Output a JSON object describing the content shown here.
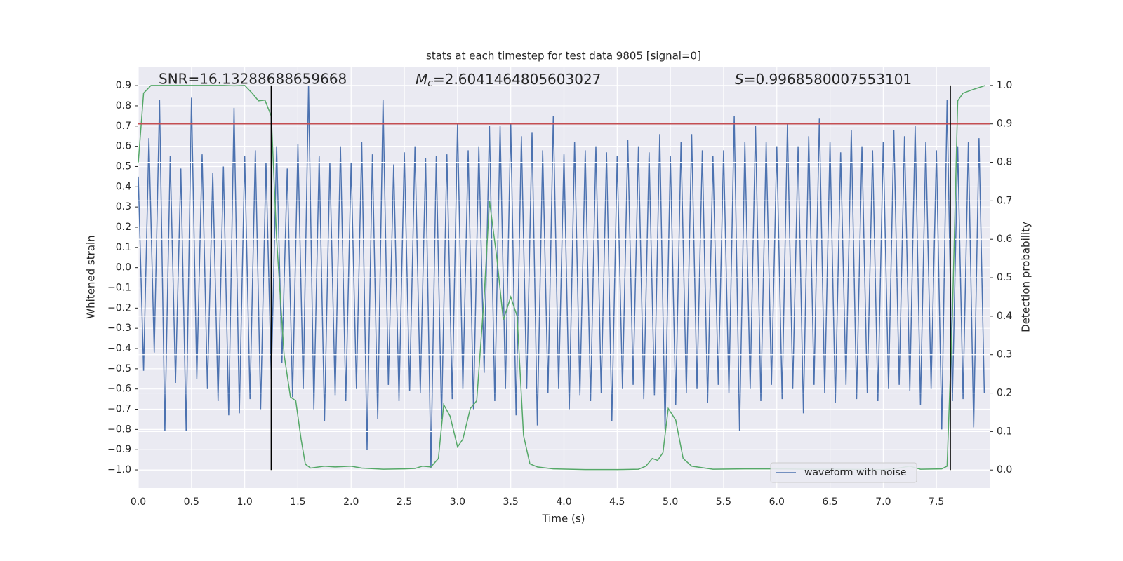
{
  "chart_data": {
    "type": "line",
    "title": "stats at each timestep for test data 9805 [signal=0]",
    "xlabel": "Time (s)",
    "ylabel": "Whitened strain",
    "y2label": "Detection probability",
    "annotations": [
      {
        "text": "SNR=16.13288688659668"
      },
      {
        "symbol": "M",
        "subscript": "c",
        "text": "=2.6041464805603027"
      },
      {
        "symbol": "S",
        "text": "=0.9968580007553101"
      }
    ],
    "xlim": [
      0,
      8.0
    ],
    "ylim": [
      -1.09,
      0.994
    ],
    "y2lim": [
      -0.047,
      1.049
    ],
    "xticks": [
      {
        "value": 0,
        "label": "0.0"
      },
      {
        "value": 0.5,
        "label": "0.5"
      },
      {
        "value": 1,
        "label": "1.0"
      },
      {
        "value": 1.5,
        "label": "1.5"
      },
      {
        "value": 2,
        "label": "2.0"
      },
      {
        "value": 2.5,
        "label": "2.5"
      },
      {
        "value": 3,
        "label": "3.0"
      },
      {
        "value": 3.5,
        "label": "3.5"
      },
      {
        "value": 4,
        "label": "4.0"
      },
      {
        "value": 4.5,
        "label": "4.5"
      },
      {
        "value": 5,
        "label": "5.0"
      },
      {
        "value": 5.5,
        "label": "5.5"
      },
      {
        "value": 6,
        "label": "6.0"
      },
      {
        "value": 6.5,
        "label": "6.5"
      },
      {
        "value": 7,
        "label": "7.0"
      },
      {
        "value": 7.5,
        "label": "7.5"
      }
    ],
    "yticks": [
      {
        "value": -1.0,
        "label": "−1.0"
      },
      {
        "value": -0.9,
        "label": "−0.9"
      },
      {
        "value": -0.8,
        "label": "−0.8"
      },
      {
        "value": -0.7,
        "label": "−0.7"
      },
      {
        "value": -0.6,
        "label": "−0.6"
      },
      {
        "value": -0.5,
        "label": "−0.5"
      },
      {
        "value": -0.4,
        "label": "−0.4"
      },
      {
        "value": -0.3,
        "label": "−0.3"
      },
      {
        "value": -0.2,
        "label": "−0.2"
      },
      {
        "value": -0.1,
        "label": "−0.1"
      },
      {
        "value": 0,
        "label": "0.0"
      },
      {
        "value": 0.1,
        "label": "0.1"
      },
      {
        "value": 0.2,
        "label": "0.2"
      },
      {
        "value": 0.3,
        "label": "0.3"
      },
      {
        "value": 0.4,
        "label": "0.4"
      },
      {
        "value": 0.5,
        "label": "0.5"
      },
      {
        "value": 0.6,
        "label": "0.6"
      },
      {
        "value": 0.7,
        "label": "0.7"
      },
      {
        "value": 0.8,
        "label": "0.8"
      },
      {
        "value": 0.9,
        "label": "0.9"
      }
    ],
    "y2ticks": [
      {
        "value": 0,
        "label": "0.0"
      },
      {
        "value": 0.1,
        "label": "0.1"
      },
      {
        "value": 0.2,
        "label": "0.2"
      },
      {
        "value": 0.3,
        "label": "0.3"
      },
      {
        "value": 0.4,
        "label": "0.4"
      },
      {
        "value": 0.5,
        "label": "0.5"
      },
      {
        "value": 0.6,
        "label": "0.6"
      },
      {
        "value": 0.7,
        "label": "0.7"
      },
      {
        "value": 0.8,
        "label": "0.8"
      },
      {
        "value": 0.9,
        "label": "0.9"
      },
      {
        "value": 1,
        "label": "1.0"
      }
    ],
    "grid": true,
    "legend": "lower right",
    "series": [
      {
        "name": "waveform with noise",
        "color": "#4c72b0",
        "x": [
          0,
          0.05,
          0.1,
          0.15,
          0.2,
          0.25,
          0.3,
          0.35,
          0.4,
          0.45,
          0.5,
          0.55,
          0.6,
          0.65,
          0.7,
          0.75,
          0.8,
          0.85,
          0.9,
          0.95,
          1,
          1.05,
          1.1,
          1.15,
          1.2,
          1.25,
          1.3,
          1.35,
          1.4,
          1.45,
          1.5,
          1.55,
          1.6,
          1.65,
          1.7,
          1.75,
          1.8,
          1.85,
          1.9,
          1.95,
          2,
          2.05,
          2.1,
          2.15,
          2.2,
          2.25,
          2.3,
          2.35,
          2.4,
          2.45,
          2.5,
          2.55,
          2.6,
          2.65,
          2.7,
          2.75,
          2.8,
          2.85,
          2.9,
          2.95,
          3,
          3.05,
          3.1,
          3.15,
          3.2,
          3.25,
          3.3,
          3.35,
          3.4,
          3.45,
          3.5,
          3.55,
          3.6,
          3.65,
          3.7,
          3.75,
          3.8,
          3.85,
          3.9,
          3.95,
          4,
          4.05,
          4.1,
          4.15,
          4.2,
          4.25,
          4.3,
          4.35,
          4.4,
          4.45,
          4.5,
          4.55,
          4.6,
          4.65,
          4.7,
          4.75,
          4.8,
          4.85,
          4.9,
          4.95,
          5,
          5.05,
          5.1,
          5.15,
          5.2,
          5.25,
          5.3,
          5.35,
          5.4,
          5.45,
          5.5,
          5.55,
          5.6,
          5.65,
          5.7,
          5.75,
          5.8,
          5.85,
          5.9,
          5.95,
          6,
          6.05,
          6.1,
          6.15,
          6.2,
          6.25,
          6.3,
          6.35,
          6.4,
          6.45,
          6.5,
          6.55,
          6.6,
          6.65,
          6.7,
          6.75,
          6.8,
          6.85,
          6.9,
          6.95,
          7,
          7.05,
          7.1,
          7.15,
          7.2,
          7.25,
          7.3,
          7.35,
          7.4,
          7.45,
          7.5,
          7.55,
          7.6,
          7.65,
          7.7,
          7.75,
          7.8,
          7.85,
          7.9,
          7.95
        ],
        "values": [
          0.45,
          -0.51,
          0.64,
          -0.42,
          0.83,
          -0.81,
          0.55,
          -0.57,
          0.49,
          -0.81,
          0.84,
          -0.55,
          0.56,
          -0.6,
          0.47,
          -0.66,
          0.5,
          -0.73,
          0.79,
          -0.72,
          0.55,
          -0.65,
          0.58,
          -0.7,
          0.52,
          -0.55,
          0.6,
          -0.47,
          0.49,
          -0.64,
          0.61,
          -0.6,
          0.9,
          -0.7,
          0.55,
          -0.76,
          0.52,
          -0.63,
          0.6,
          -0.66,
          0.52,
          -0.6,
          0.62,
          -0.9,
          0.56,
          -0.75,
          0.83,
          -0.58,
          0.51,
          -0.66,
          0.57,
          -0.61,
          0.6,
          -0.62,
          0.54,
          -0.99,
          0.55,
          -0.75,
          0.56,
          -0.65,
          0.71,
          -0.6,
          0.58,
          -0.7,
          0.6,
          -0.52,
          0.7,
          -0.66,
          0.7,
          -0.6,
          0.71,
          -0.73,
          0.65,
          -0.6,
          0.67,
          -0.78,
          0.58,
          -0.62,
          0.75,
          -0.6,
          0.56,
          -0.7,
          0.62,
          -0.63,
          0.58,
          -0.66,
          0.6,
          -0.62,
          0.57,
          -0.76,
          0.55,
          -0.6,
          0.63,
          -0.58,
          0.6,
          -0.65,
          0.57,
          -0.63,
          0.66,
          -0.8,
          0.55,
          -0.68,
          0.62,
          -0.62,
          0.66,
          -0.6,
          0.58,
          -0.67,
          0.55,
          -0.58,
          0.58,
          -0.62,
          0.75,
          -0.81,
          0.62,
          -0.6,
          0.7,
          -0.66,
          0.62,
          -0.58,
          0.6,
          -0.65,
          0.71,
          -0.6,
          0.6,
          -0.72,
          0.65,
          -0.58,
          0.74,
          -0.62,
          0.62,
          -0.67,
          0.57,
          -0.58,
          0.68,
          -0.65,
          0.6,
          -0.62,
          0.58,
          -0.66,
          0.62,
          -0.6,
          0.68,
          -0.58,
          0.65,
          -0.61,
          0.7,
          -0.68,
          0.62,
          -0.6,
          0.58,
          -0.8,
          0.83,
          -0.66,
          0.6,
          -0.65,
          0.62,
          -0.79,
          0.64,
          -0.62
        ]
      },
      {
        "color": "#55a868",
        "axis": "y2",
        "x": [
          0,
          0.05,
          0.12,
          0.5,
          0.8,
          0.9,
          1,
          1.07,
          1.13,
          1.19,
          1.25,
          1.3,
          1.37,
          1.43,
          1.48,
          1.53,
          1.57,
          1.62,
          1.75,
          1.85,
          2,
          2.1,
          2.3,
          2.5,
          2.6,
          2.67,
          2.75,
          2.82,
          2.87,
          2.93,
          3,
          3.05,
          3.12,
          3.18,
          3.25,
          3.3,
          3.37,
          3.43,
          3.5,
          3.56,
          3.62,
          3.68,
          3.75,
          3.9,
          4.2,
          4.5,
          4.7,
          4.77,
          4.83,
          4.88,
          4.93,
          4.98,
          5.05,
          5.12,
          5.2,
          5.4,
          5.7,
          6,
          6.3,
          6.6,
          7,
          7.1,
          7.25,
          7.35,
          7.55,
          7.6,
          7.65,
          7.7,
          7.75,
          7.85,
          7.96
        ],
        "values": [
          0.8,
          0.98,
          1,
          1,
          1,
          0.999,
          1,
          0.98,
          0.96,
          0.962,
          0.92,
          0.6,
          0.3,
          0.19,
          0.18,
          0.08,
          0.015,
          0.005,
          0.01,
          0.008,
          0.01,
          0.005,
          0.002,
          0.003,
          0.004,
          0.01,
          0.008,
          0.03,
          0.17,
          0.14,
          0.06,
          0.08,
          0.16,
          0.18,
          0.45,
          0.7,
          0.55,
          0.39,
          0.45,
          0.4,
          0.09,
          0.016,
          0.008,
          0.003,
          0.001,
          0.001,
          0.002,
          0.01,
          0.03,
          0.025,
          0.045,
          0.16,
          0.13,
          0.03,
          0.01,
          0.002,
          0.003,
          0.003,
          0.002,
          0.002,
          0.001,
          0.003,
          0.01,
          0.002,
          0.003,
          0.01,
          0.4,
          0.96,
          0.98,
          0.99,
          1
        ]
      }
    ],
    "hlines": [
      {
        "y": 0.9,
        "axis": "y2",
        "color": "#c44e52"
      }
    ],
    "vlines": {
      "x": [
        1.25,
        7.63
      ],
      "ymin": 0,
      "ymax": 1,
      "axis": "y2",
      "color": "#000000"
    }
  }
}
